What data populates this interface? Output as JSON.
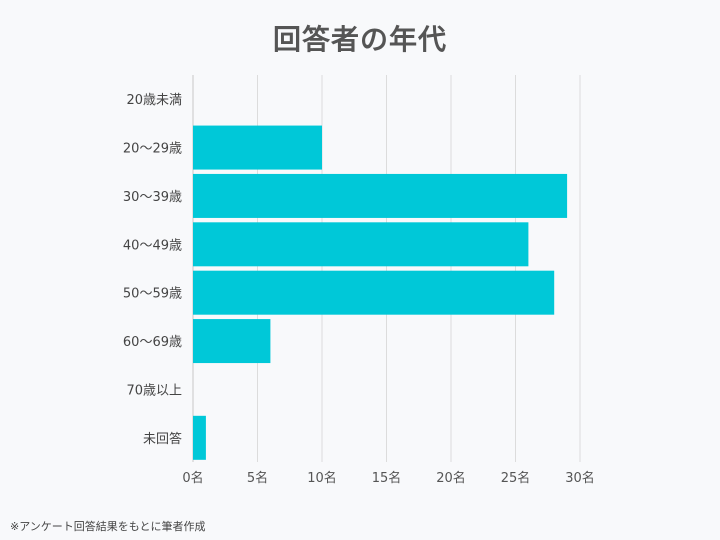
{
  "chart_data": {
    "type": "bar",
    "orientation": "horizontal",
    "title": "回答者の年代",
    "categories": [
      "20歳未満",
      "20～29歳",
      "30～39歳",
      "40～49歳",
      "50～59歳",
      "60～69歳",
      "70歳以上",
      "未回答"
    ],
    "values": [
      0,
      10,
      29,
      26,
      28,
      6,
      0,
      1
    ],
    "xlim": [
      0,
      30
    ],
    "xticks": [
      0,
      5,
      10,
      15,
      20,
      25,
      30
    ],
    "xtick_labels": [
      "0名",
      "5名",
      "10名",
      "15名",
      "20名",
      "25名",
      "30名"
    ],
    "grid": true,
    "legend": "none",
    "bar_color": "#00c8d8"
  },
  "footnote": "※アンケート回答結果をもとに筆者作成"
}
